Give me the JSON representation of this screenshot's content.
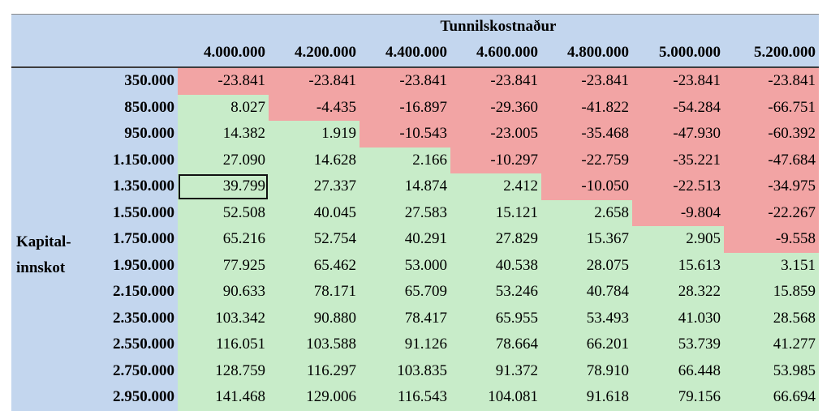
{
  "header": {
    "title": "Tunnilskostnaður",
    "columns": [
      "4.000.000",
      "4.200.000",
      "4.400.000",
      "4.600.000",
      "4.800.000",
      "5.000.000",
      "5.200.000"
    ]
  },
  "row_group_label": "Kapital-\ninnskot",
  "rows": [
    {
      "label": "350.000",
      "values": [
        "-23.841",
        "-23.841",
        "-23.841",
        "-23.841",
        "-23.841",
        "-23.841",
        "-23.841"
      ]
    },
    {
      "label": "850.000",
      "values": [
        "8.027",
        "-4.435",
        "-16.897",
        "-29.360",
        "-41.822",
        "-54.284",
        "-66.751"
      ]
    },
    {
      "label": "950.000",
      "values": [
        "14.382",
        "1.919",
        "-10.543",
        "-23.005",
        "-35.468",
        "-47.930",
        "-60.392"
      ]
    },
    {
      "label": "1.150.000",
      "values": [
        "27.090",
        "14.628",
        "2.166",
        "-10.297",
        "-22.759",
        "-35.221",
        "-47.684"
      ]
    },
    {
      "label": "1.350.000",
      "values": [
        "39.799",
        "27.337",
        "14.874",
        "2.412",
        "-10.050",
        "-22.513",
        "-34.975"
      ]
    },
    {
      "label": "1.550.000",
      "values": [
        "52.508",
        "40.045",
        "27.583",
        "15.121",
        "2.658",
        "-9.804",
        "-22.267"
      ]
    },
    {
      "label": "1.750.000",
      "values": [
        "65.216",
        "52.754",
        "40.291",
        "27.829",
        "15.367",
        "2.905",
        "-9.558"
      ]
    },
    {
      "label": "1.950.000",
      "values": [
        "77.925",
        "65.462",
        "53.000",
        "40.538",
        "28.075",
        "15.613",
        "3.151"
      ]
    },
    {
      "label": "2.150.000",
      "values": [
        "90.633",
        "78.171",
        "65.709",
        "53.246",
        "40.784",
        "28.322",
        "15.859"
      ]
    },
    {
      "label": "2.350.000",
      "values": [
        "103.342",
        "90.880",
        "78.417",
        "65.955",
        "53.493",
        "41.030",
        "28.568"
      ]
    },
    {
      "label": "2.550.000",
      "values": [
        "116.051",
        "103.588",
        "91.126",
        "78.664",
        "66.201",
        "53.739",
        "41.277"
      ]
    },
    {
      "label": "2.750.000",
      "values": [
        "128.759",
        "116.297",
        "103.835",
        "91.372",
        "78.910",
        "66.448",
        "53.985"
      ]
    },
    {
      "label": "2.950.000",
      "values": [
        "141.468",
        "129.006",
        "116.543",
        "104.081",
        "91.618",
        "79.156",
        "66.694"
      ]
    }
  ],
  "highlighted_cell": {
    "row": 4,
    "col": 0
  },
  "colors": {
    "header_bg": "#c3d6ee",
    "positive_bg": "#c8ecc9",
    "negative_bg": "#f2a4a4"
  }
}
